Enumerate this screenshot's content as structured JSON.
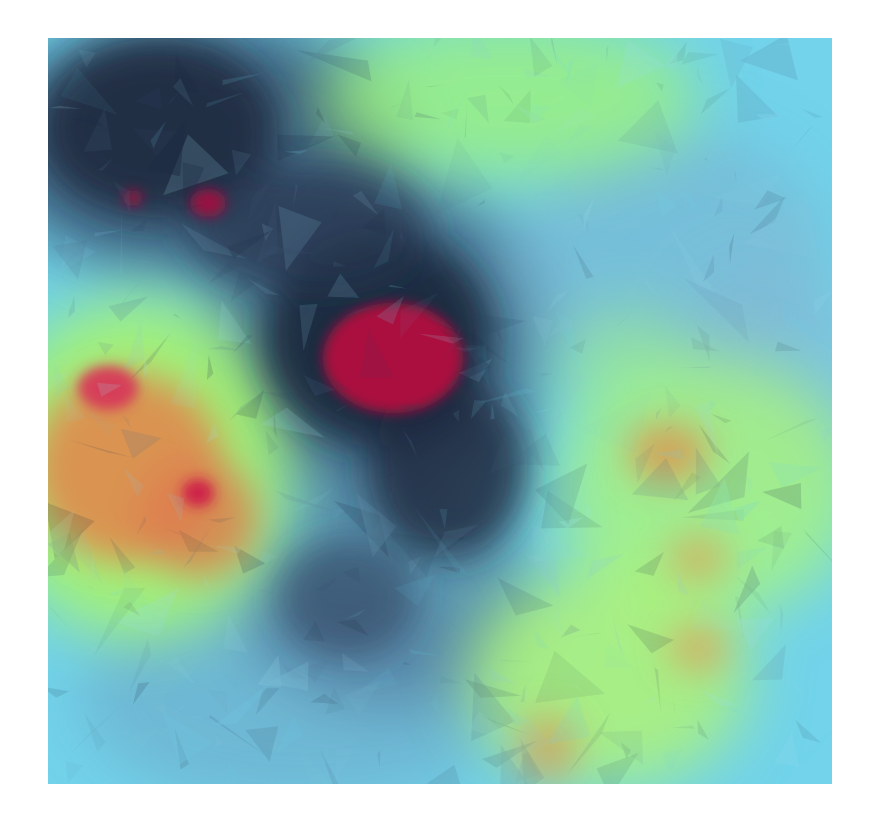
{
  "image": {
    "subject": "abstract-heatmap-texture",
    "palette": {
      "background": "#ffffff",
      "cyan": "#6fd4ec",
      "light_blue": "#8fc9e0",
      "dark_navy": "#1c2a40",
      "steel": "#4f6f8f",
      "green": "#8ef57a",
      "yellow_green": "#c8f06a",
      "orange": "#e88a4c",
      "red": "#d63a52",
      "crimson": "#b0123e"
    }
  }
}
